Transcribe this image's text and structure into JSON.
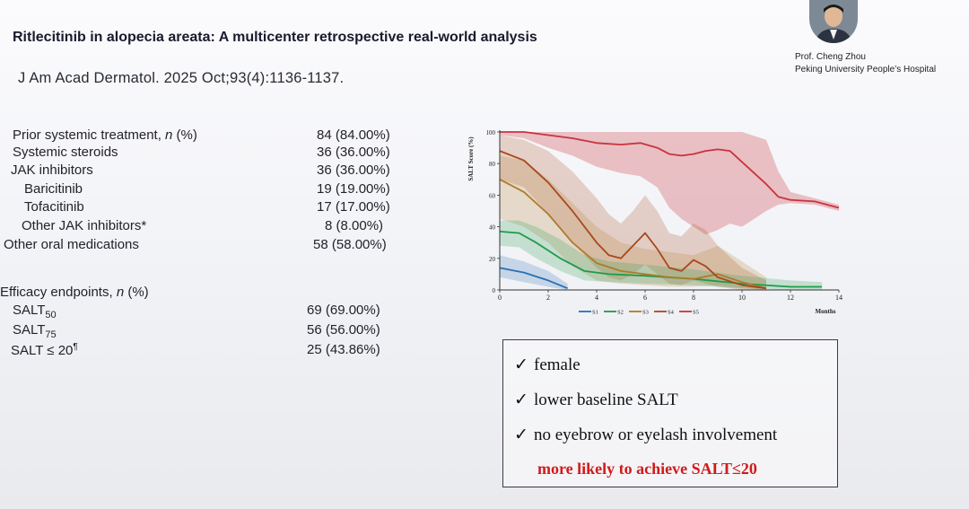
{
  "header": {
    "title": "Ritlecitinib in alopecia areata: A multicenter retrospective real-world analysis",
    "citation": "J Am Acad Dermatol. 2025 Oct;93(4):1136-1137."
  },
  "speaker": {
    "name": "Prof. Cheng Zhou",
    "institution": "Peking University People’s Hospital"
  },
  "treatment_table": {
    "rows": [
      {
        "label": "Prior systemic treatment, ",
        "label_italic": "n",
        "label_tail": " (%)",
        "value": "84 (84.00%)"
      },
      {
        "label": "Systemic steroids",
        "value": "36 (36.00%)"
      },
      {
        "label": "JAK inhibitors",
        "value": "36 (36.00%)"
      },
      {
        "label": "Baricitinib",
        "value": "19 (19.00%)"
      },
      {
        "label": "Tofacitinib",
        "value": "17 (17.00%)"
      },
      {
        "label": "Other JAK inhibitors*",
        "value": "8 (8.00%)"
      },
      {
        "label": "Other oral medications",
        "value": "58 (58.00%)"
      }
    ]
  },
  "efficacy_table": {
    "heading": "Efficacy endpoints, ",
    "heading_italic": "n",
    "heading_tail": " (%)",
    "rows": [
      {
        "label": "SALT",
        "sub": "50",
        "value": "69 (69.00%)"
      },
      {
        "label": "SALT",
        "sub": "75",
        "value": "56 (56.00%)"
      },
      {
        "label": "SALT ≤ 20",
        "sup": "¶",
        "value": "25 (43.86%)"
      }
    ]
  },
  "chart_data": {
    "type": "line",
    "ylabel": "SALT Score (%)",
    "xlabel": "Months",
    "xlim": [
      0,
      14
    ],
    "ylim": [
      0,
      100
    ],
    "x_ticks": [
      0,
      2,
      4,
      6,
      8,
      10,
      12,
      14
    ],
    "y_ticks": [
      0,
      20,
      40,
      60,
      80,
      100
    ],
    "legend_placement": "bottom",
    "series": [
      {
        "name": "S1",
        "color": "#2a6fb0",
        "x": [
          0,
          1,
          2,
          2.8
        ],
        "y": [
          14,
          11,
          6,
          1
        ],
        "band_low": [
          8,
          5,
          2,
          0
        ],
        "band_high": [
          22,
          18,
          12,
          4
        ]
      },
      {
        "name": "S2",
        "color": "#1f9a4a",
        "x": [
          0,
          0.8,
          1.5,
          2.5,
          3.5,
          4.5,
          6,
          8,
          10,
          12,
          13.3
        ],
        "y": [
          37,
          36,
          30,
          20,
          12,
          10,
          9,
          7,
          4,
          2,
          2
        ],
        "band_low": [
          28,
          27,
          20,
          12,
          6,
          5,
          4,
          3,
          1,
          0,
          0
        ],
        "band_high": [
          44,
          44,
          40,
          32,
          22,
          18,
          16,
          13,
          9,
          6,
          5
        ]
      },
      {
        "name": "S3",
        "color": "#b07a2a",
        "x": [
          0,
          1,
          2,
          3,
          4,
          5,
          6,
          7,
          8,
          9,
          10,
          11
        ],
        "y": [
          70,
          62,
          48,
          30,
          17,
          12,
          10,
          8,
          7,
          10,
          5,
          1
        ],
        "band_low": [
          45,
          40,
          30,
          15,
          6,
          4,
          3,
          2,
          2,
          3,
          1,
          0
        ],
        "band_high": [
          85,
          82,
          70,
          55,
          40,
          30,
          26,
          24,
          22,
          28,
          18,
          8
        ]
      },
      {
        "name": "S4",
        "color": "#a8481c",
        "x": [
          0,
          1,
          2,
          3,
          4,
          4.5,
          5,
          5.5,
          6,
          6.5,
          7,
          7.5,
          8,
          8.5,
          9,
          10,
          11
        ],
        "y": [
          88,
          82,
          68,
          50,
          30,
          22,
          20,
          28,
          36,
          26,
          14,
          12,
          19,
          15,
          8,
          3,
          1
        ],
        "band_low": [
          70,
          65,
          48,
          30,
          14,
          8,
          6,
          10,
          16,
          10,
          4,
          3,
          6,
          4,
          2,
          0,
          0
        ],
        "band_high": [
          98,
          95,
          88,
          75,
          58,
          48,
          42,
          50,
          60,
          50,
          36,
          34,
          42,
          38,
          28,
          14,
          6
        ]
      },
      {
        "name": "S5",
        "color": "#c8343c",
        "x": [
          0,
          1,
          2,
          3,
          4,
          5,
          5.8,
          6.5,
          7,
          7.5,
          8,
          8.5,
          9,
          9.5,
          10,
          11,
          11.5,
          12,
          13,
          14
        ],
        "y": [
          100,
          100,
          98,
          96,
          93,
          92,
          93,
          90,
          86,
          85,
          86,
          88,
          89,
          88,
          81,
          67,
          59,
          57,
          56,
          52
        ],
        "band_low": [
          98,
          96,
          90,
          85,
          78,
          74,
          72,
          65,
          52,
          45,
          40,
          35,
          38,
          42,
          40,
          50,
          54,
          55,
          54,
          50
        ],
        "band_high": [
          100,
          100,
          100,
          100,
          100,
          100,
          100,
          100,
          100,
          100,
          100,
          100,
          100,
          100,
          100,
          95,
          75,
          62,
          58,
          54
        ]
      }
    ]
  },
  "findings_box": {
    "check_icon": "check-icon",
    "items": [
      "female",
      "lower baseline SALT",
      "no eyebrow or eyelash involvement"
    ],
    "conclusion": "more likely to achieve SALT≤20",
    "conclusion_color": "#d21a1a"
  }
}
